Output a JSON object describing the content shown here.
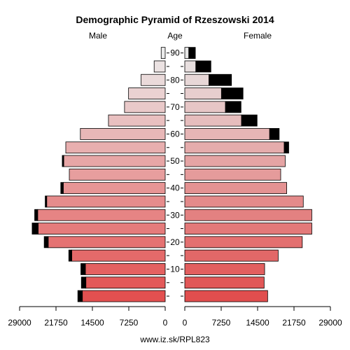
{
  "chart_data": {
    "type": "bar",
    "title": "Demographic Pyramid of Rzeszowski 2014",
    "left_label": "Male",
    "center_label": "Age",
    "right_label": "Female",
    "footer": "www.iz.sk/RPL823",
    "xlim": [
      0,
      29000
    ],
    "x_ticks": [
      0,
      7250,
      14500,
      21750,
      29000
    ],
    "x_tick_labels_left": [
      "29000",
      "21750",
      "14500",
      "7250",
      "0"
    ],
    "x_tick_labels_right": [
      "0",
      "7250",
      "14500",
      "21750",
      "29000"
    ],
    "age_ticks": [
      10,
      20,
      30,
      40,
      50,
      60,
      70,
      80,
      90
    ],
    "age_groups": [
      "0-4",
      "5-9",
      "10-14",
      "15-19",
      "20-24",
      "25-29",
      "30-34",
      "35-39",
      "40-44",
      "45-49",
      "50-54",
      "55-59",
      "60-64",
      "65-69",
      "70-74",
      "75-79",
      "80-84",
      "85-89",
      "90+"
    ],
    "excess_color": "#000000",
    "series": [
      {
        "name": "Male",
        "values": [
          16500,
          15800,
          15900,
          18600,
          23300,
          25300,
          25400,
          23600,
          20300,
          19100,
          20200,
          19800,
          16900,
          11300,
          8100,
          7300,
          4800,
          2200,
          800
        ],
        "excess": [
          900,
          900,
          900,
          600,
          800,
          1200,
          600,
          300,
          500,
          0,
          300,
          0,
          0,
          0,
          0,
          0,
          0,
          0,
          0
        ]
      },
      {
        "name": "Female",
        "values": [
          16500,
          15800,
          15900,
          18600,
          23400,
          25300,
          25300,
          23600,
          20300,
          19100,
          20000,
          19800,
          16900,
          11300,
          8100,
          7300,
          4800,
          2200,
          800
        ],
        "excess": [
          0,
          0,
          0,
          0,
          0,
          0,
          0,
          0,
          0,
          0,
          0,
          900,
          1900,
          3100,
          3100,
          4300,
          4500,
          3000,
          1300
        ]
      }
    ]
  }
}
